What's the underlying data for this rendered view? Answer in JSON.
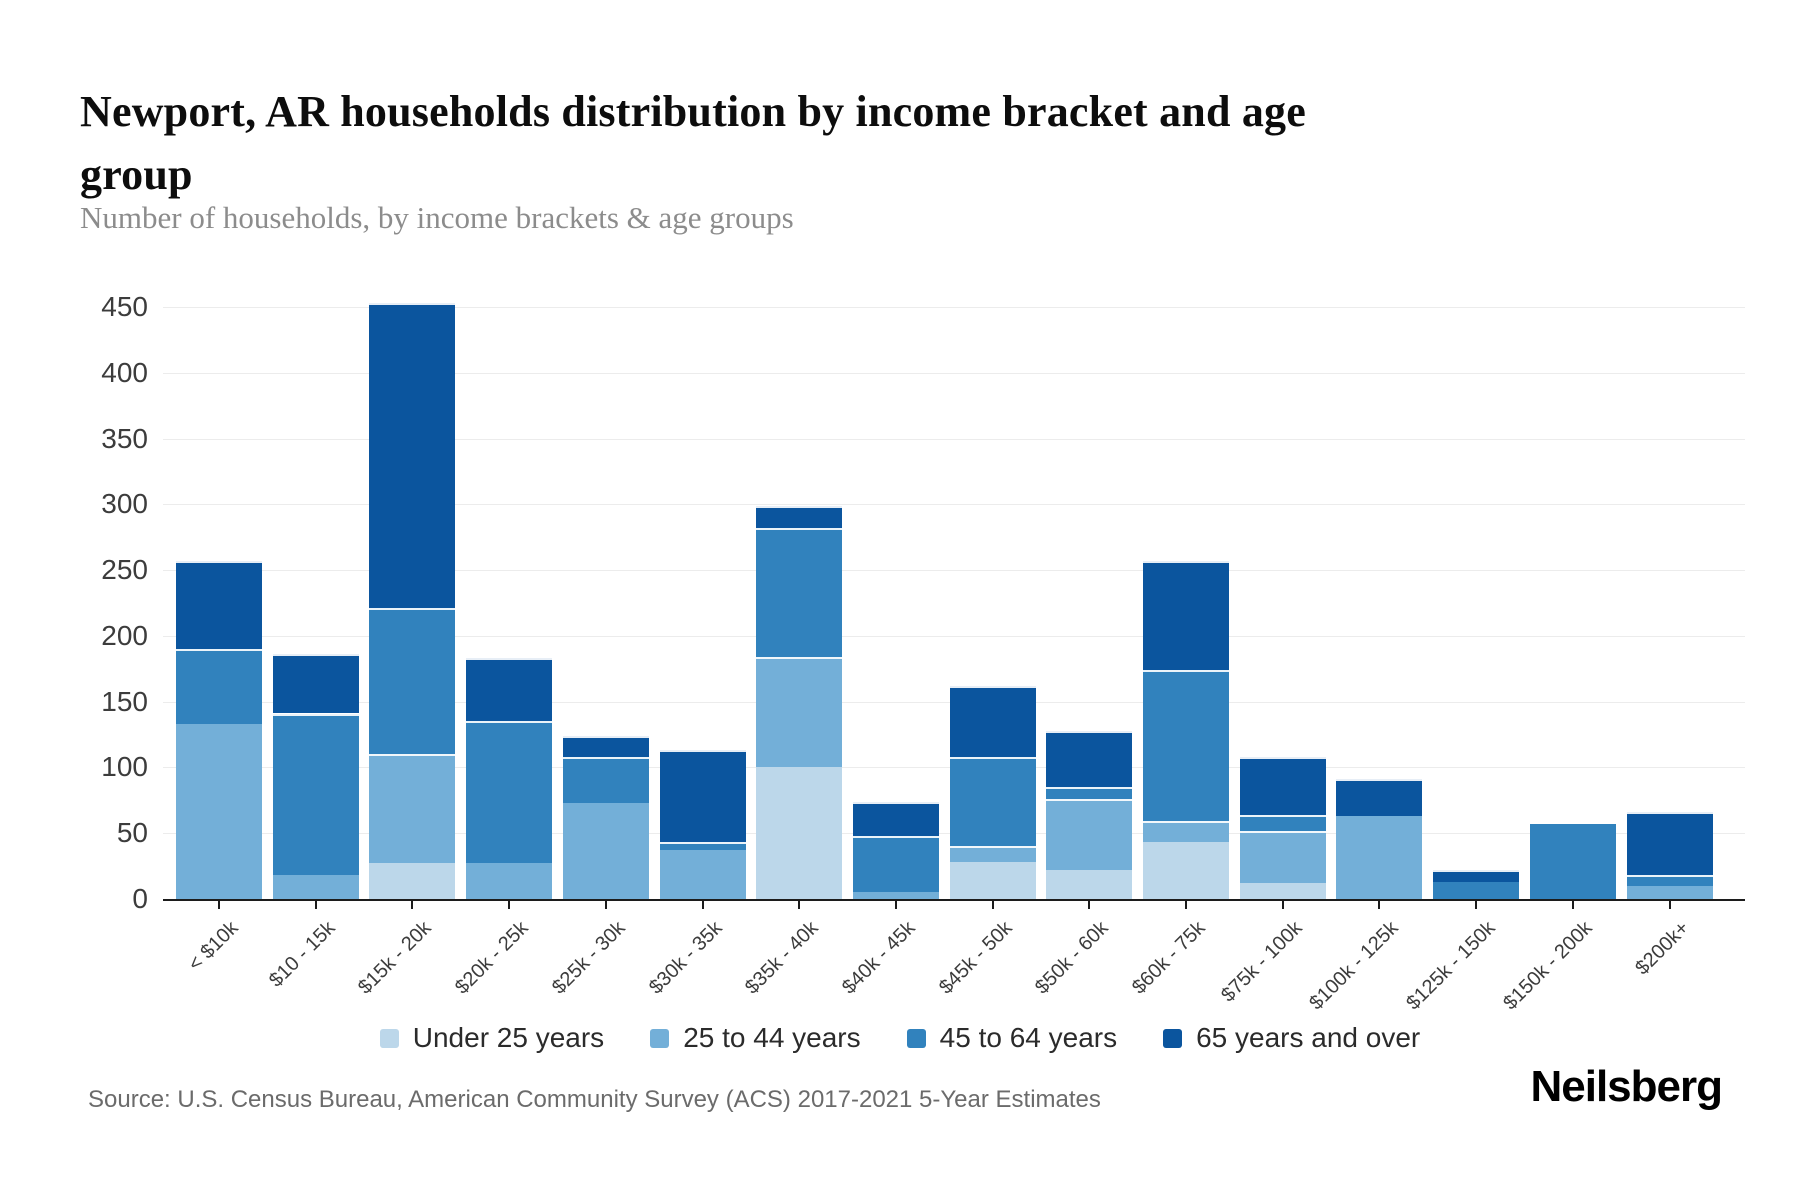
{
  "header": {
    "title": "Newport, AR households distribution by income bracket and age group",
    "subtitle": "Number of households, by income brackets & age groups"
  },
  "footer": {
    "source": "Source: U.S. Census Bureau, American Community Survey (ACS) 2017-2021 5-Year Estimates",
    "brand": "Neilsberg"
  },
  "chart_data": {
    "type": "bar",
    "stacked": true,
    "title": "Newport, AR households distribution by income bracket and age group",
    "subtitle": "Number of households, by income brackets & age groups",
    "xlabel": "",
    "ylabel": "",
    "ylim": [
      0,
      450
    ],
    "ytick_step": 50,
    "grid": true,
    "legend_position": "bottom",
    "categories": [
      "< $10k",
      "$10 - 15k",
      "$15k - 20k",
      "$20k - 25k",
      "$25k - 30k",
      "$30k - 35k",
      "$35k - 40k",
      "$40k - 45k",
      "$45k - 50k",
      "$50k - 60k",
      "$60k - 75k",
      "$75k - 100k",
      "$100k - 125k",
      "$125k - 150k",
      "$150k - 200k",
      "$200k+"
    ],
    "series": [
      {
        "name": "Under 25 years",
        "color": "#bcd7ea",
        "values": [
          0,
          0,
          27,
          0,
          0,
          0,
          100,
          0,
          28,
          22,
          43,
          12,
          0,
          0,
          0,
          0
        ]
      },
      {
        "name": "25 to 44 years",
        "color": "#73afd8",
        "values": [
          133,
          18,
          83,
          27,
          73,
          37,
          84,
          5,
          12,
          54,
          16,
          40,
          63,
          0,
          0,
          10
        ]
      },
      {
        "name": "45 to 64 years",
        "color": "#3182bd",
        "values": [
          57,
          123,
          111,
          108,
          35,
          6,
          98,
          43,
          68,
          9,
          115,
          12,
          0,
          13,
          57,
          8
        ]
      },
      {
        "name": "65 years and over",
        "color": "#0b559e",
        "values": [
          67,
          45,
          232,
          48,
          16,
          70,
          17,
          26,
          54,
          43,
          83,
          44,
          28,
          9,
          0,
          48
        ]
      }
    ],
    "totals": [
      257,
      186,
      453,
      183,
      124,
      113,
      299,
      74,
      162,
      128,
      257,
      108,
      91,
      22,
      57,
      66
    ]
  }
}
